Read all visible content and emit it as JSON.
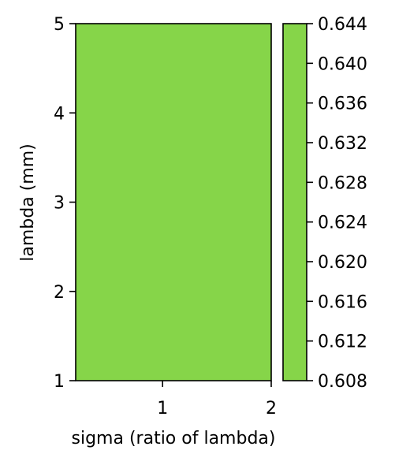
{
  "chart_data": {
    "type": "heatmap",
    "subtype": "filled-contour",
    "title": "",
    "xlabel": "sigma (ratio of lambda)",
    "ylabel": "lambda (mm)",
    "xlim": [
      0.2,
      2.0
    ],
    "ylim": [
      1,
      5
    ],
    "x_ticks": [
      {
        "value": 1,
        "label": "1"
      },
      {
        "value": 2,
        "label": "2"
      }
    ],
    "y_ticks": [
      {
        "value": 1,
        "label": "1"
      },
      {
        "value": 2,
        "label": "2"
      },
      {
        "value": 3,
        "label": "3"
      },
      {
        "value": 4,
        "label": "4"
      },
      {
        "value": 5,
        "label": "5"
      }
    ],
    "colorbar": {
      "range": [
        0.608,
        0.644
      ],
      "ticks": [
        {
          "value": 0.608,
          "label": "0.608"
        },
        {
          "value": 0.612,
          "label": "0.612"
        },
        {
          "value": 0.616,
          "label": "0.616"
        },
        {
          "value": 0.62,
          "label": "0.620"
        },
        {
          "value": 0.624,
          "label": "0.624"
        },
        {
          "value": 0.628,
          "label": "0.628"
        },
        {
          "value": 0.632,
          "label": "0.632"
        },
        {
          "value": 0.636,
          "label": "0.636"
        },
        {
          "value": 0.64,
          "label": "0.640"
        },
        {
          "value": 0.644,
          "label": "0.644"
        }
      ],
      "color": "#86d549"
    },
    "fill_color": "#86d549",
    "grid": false
  }
}
